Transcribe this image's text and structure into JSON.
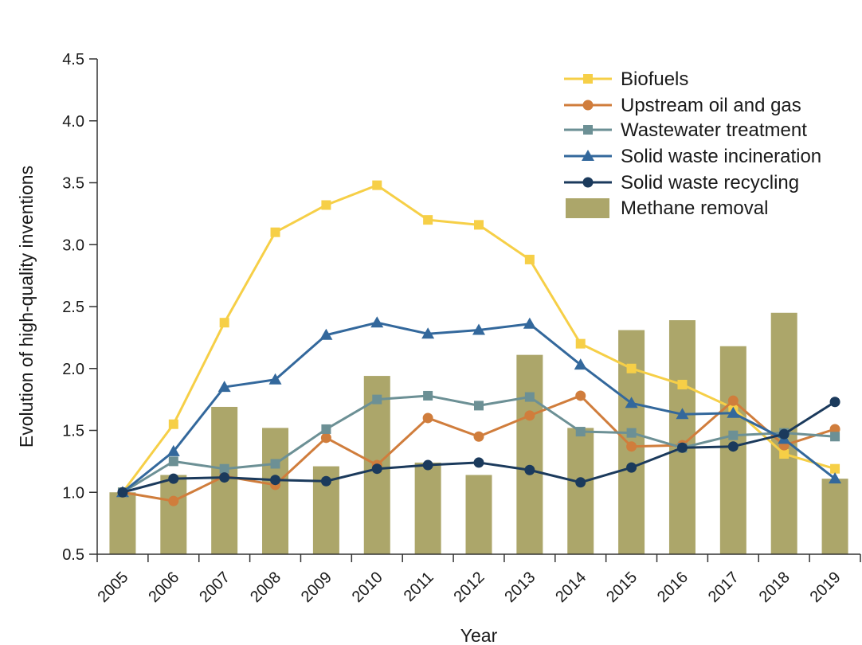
{
  "chart_data": {
    "type": "bar+line",
    "xlabel": "Year",
    "ylabel": "Evolution of high-quality inventions",
    "ylim": [
      0.5,
      4.5
    ],
    "yticks": [
      "0.5",
      "1.0",
      "1.5",
      "2.0",
      "2.5",
      "3.0",
      "3.5",
      "4.0",
      "4.5"
    ],
    "categories": [
      "2005",
      "2006",
      "2007",
      "2008",
      "2009",
      "2010",
      "2011",
      "2012",
      "2013",
      "2014",
      "2015",
      "2016",
      "2017",
      "2018",
      "2019"
    ],
    "legend_position": "top-right",
    "bars": {
      "name": "Methane removal",
      "color": "#aca66a",
      "values": [
        1.0,
        1.14,
        1.69,
        1.52,
        1.21,
        1.94,
        1.24,
        1.14,
        2.11,
        1.52,
        2.31,
        2.39,
        2.18,
        2.45,
        1.11
      ]
    },
    "series": [
      {
        "name": "Biofuels",
        "color": "#f6cf47",
        "marker": "square",
        "values": [
          1.0,
          1.55,
          2.37,
          3.1,
          3.32,
          3.48,
          3.2,
          3.16,
          2.88,
          2.2,
          2.0,
          1.87,
          1.68,
          1.31,
          1.19
        ]
      },
      {
        "name": "Upstream oil and gas",
        "color": "#d07d3c",
        "marker": "circle",
        "values": [
          1.0,
          0.93,
          1.13,
          1.06,
          1.44,
          1.22,
          1.6,
          1.45,
          1.62,
          1.78,
          1.37,
          1.38,
          1.74,
          1.38,
          1.51
        ]
      },
      {
        "name": "Wastewater treatment",
        "color": "#6c9095",
        "marker": "square",
        "values": [
          1.0,
          1.25,
          1.19,
          1.23,
          1.51,
          1.75,
          1.78,
          1.7,
          1.77,
          1.49,
          1.48,
          1.36,
          1.46,
          1.48,
          1.45
        ]
      },
      {
        "name": "Solid waste incineration",
        "color": "#33689c",
        "marker": "triangle",
        "values": [
          1.0,
          1.33,
          1.85,
          1.91,
          2.27,
          2.37,
          2.28,
          2.31,
          2.36,
          2.03,
          1.72,
          1.63,
          1.64,
          1.43,
          1.11
        ]
      },
      {
        "name": "Solid waste recycling",
        "color": "#1b3a5c",
        "marker": "circle",
        "values": [
          1.0,
          1.11,
          1.12,
          1.1,
          1.09,
          1.19,
          1.22,
          1.24,
          1.18,
          1.08,
          1.2,
          1.36,
          1.37,
          1.47,
          1.73
        ]
      }
    ]
  }
}
